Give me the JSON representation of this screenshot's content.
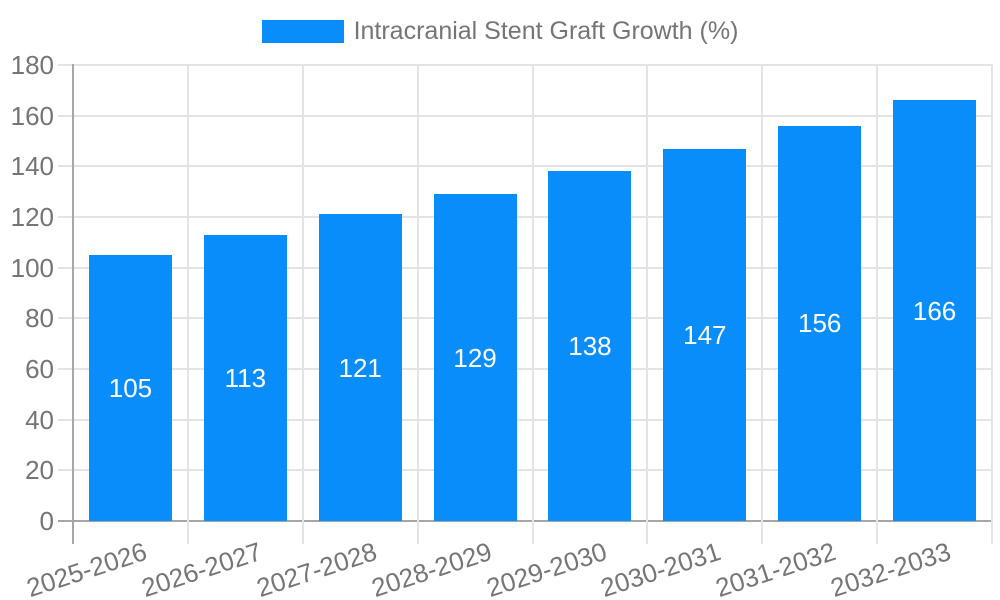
{
  "colors": {
    "bar": "#098dfa",
    "grid": "#e4e4e4",
    "axis": "#a6a6a6",
    "label": "#757575",
    "value_label": "#ffffff",
    "background": "#ffffff"
  },
  "chart_data": {
    "type": "bar",
    "title": "",
    "categories": [
      "2025-2026",
      "2026-2027",
      "2027-2028",
      "2028-2029",
      "2029-2030",
      "2030-2031",
      "2031-2032",
      "2032-2033"
    ],
    "series": [
      {
        "name": "Intracranial Stent Graft Growth (%)",
        "values": [
          105,
          113,
          121,
          129,
          138,
          147,
          156,
          166
        ]
      }
    ],
    "xlabel": "",
    "ylabel": "",
    "ylim": [
      0,
      180
    ],
    "ytick_step": 20,
    "ytick_labels": [
      "0",
      "20",
      "40",
      "60",
      "80",
      "100",
      "120",
      "140",
      "160",
      "180"
    ],
    "grid": true,
    "legend_position": "top",
    "value_labels": "inside-middle"
  }
}
